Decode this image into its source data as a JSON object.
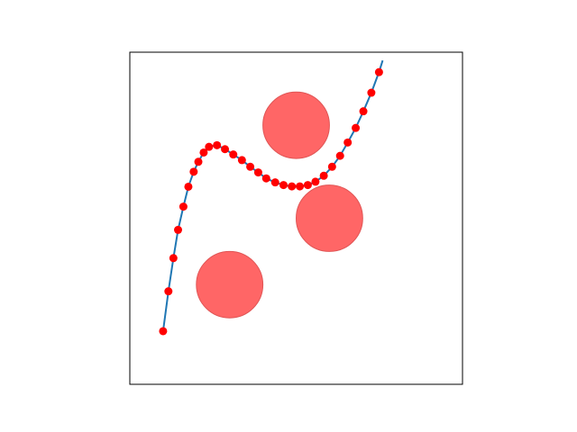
{
  "chart_data": {
    "type": "scatter",
    "title": "",
    "xlabel": "",
    "ylabel": "",
    "xlim": [
      0,
      10
    ],
    "ylim": [
      0,
      10
    ],
    "grid": false,
    "legend": "none",
    "ticks_visible": false,
    "obstacles": [
      {
        "cx": 5.0,
        "cy": 7.8,
        "r": 1.0
      },
      {
        "cx": 6.0,
        "cy": 5.0,
        "r": 1.0
      },
      {
        "cx": 3.0,
        "cy": 3.0,
        "r": 1.0
      }
    ],
    "path_line": {
      "x": [
        1.0,
        1.16,
        1.31,
        1.45,
        1.61,
        1.76,
        1.92,
        2.06,
        2.22,
        2.38,
        2.62,
        2.86,
        3.11,
        3.37,
        3.62,
        3.86,
        4.1,
        4.37,
        4.62,
        4.87,
        5.11,
        5.35,
        5.58,
        5.83,
        6.08,
        6.32,
        6.55,
        6.79,
        7.02,
        7.26,
        7.49,
        7.6
      ],
      "y": [
        1.6,
        2.8,
        3.8,
        4.65,
        5.35,
        5.95,
        6.4,
        6.7,
        6.98,
        7.15,
        7.2,
        7.08,
        6.92,
        6.75,
        6.55,
        6.38,
        6.2,
        6.08,
        6.0,
        5.96,
        5.96,
        6.0,
        6.1,
        6.28,
        6.55,
        6.88,
        7.28,
        7.72,
        8.22,
        8.78,
        9.4,
        9.75
      ]
    },
    "points": {
      "x": [
        1.0,
        1.16,
        1.31,
        1.45,
        1.61,
        1.76,
        1.92,
        2.06,
        2.22,
        2.38,
        2.62,
        2.86,
        3.11,
        3.37,
        3.62,
        3.86,
        4.1,
        4.37,
        4.62,
        4.87,
        5.11,
        5.35,
        5.58,
        5.83,
        6.08,
        6.32,
        6.55,
        6.79,
        7.02,
        7.26,
        7.49
      ],
      "y": [
        1.6,
        2.8,
        3.8,
        4.65,
        5.35,
        5.95,
        6.4,
        6.7,
        6.98,
        7.15,
        7.2,
        7.08,
        6.92,
        6.75,
        6.55,
        6.38,
        6.2,
        6.08,
        6.0,
        5.96,
        5.96,
        6.0,
        6.1,
        6.28,
        6.55,
        6.88,
        7.28,
        7.72,
        8.22,
        8.78,
        9.4
      ]
    },
    "colors": {
      "obstacle_fill": "#ff6666",
      "obstacle_edge": "#e05555",
      "line": "#1f77b4",
      "point": "#ff0000",
      "axes_frame": "#000000"
    }
  }
}
